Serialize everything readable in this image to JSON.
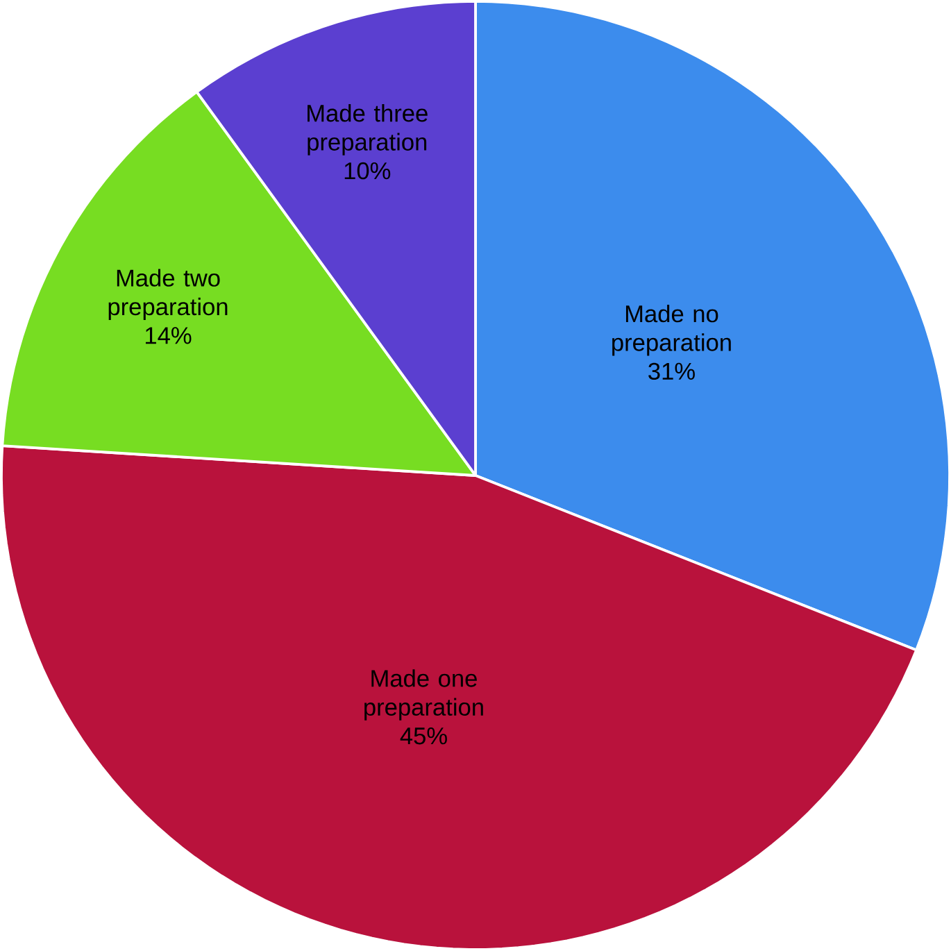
{
  "chart_data": {
    "type": "pie",
    "categories": [
      "Made no preparation",
      "Made one preparation",
      "Made two preparation",
      "Made three preparation"
    ],
    "values": [
      31,
      45,
      14,
      10
    ],
    "value_labels": [
      "31%",
      "45%",
      "14%",
      "10%"
    ],
    "colors": [
      "#3c8ced",
      "#b9123c",
      "#77dd22",
      "#5b3fd0"
    ]
  }
}
